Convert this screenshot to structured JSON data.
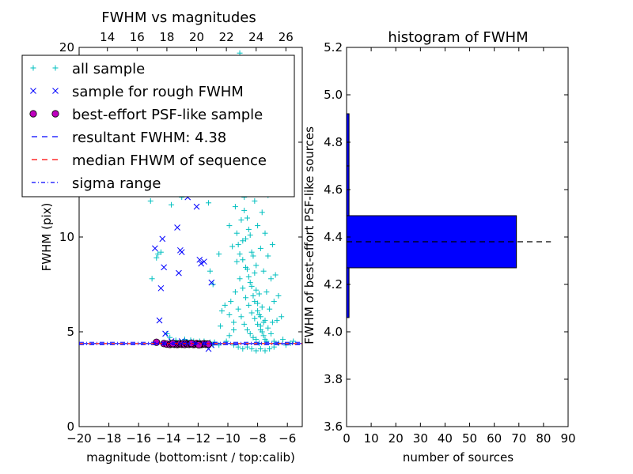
{
  "chart_data": [
    {
      "type": "scatter",
      "title": "FWHM vs magnitudes",
      "xlabel": "magnitude (bottom:isnt / top:calib)",
      "ylabel": "FWHM (pix)",
      "xlim": [
        -20,
        -5
      ],
      "ylim": [
        0,
        20
      ],
      "x_ticks": [
        "−20",
        "−18",
        "−16",
        "−14",
        "−12",
        "−10",
        "−8",
        "−6"
      ],
      "y_ticks": [
        "0",
        "5",
        "10",
        "15",
        "20"
      ],
      "top_ticks": [
        "14",
        "16",
        "18",
        "20",
        "22",
        "24",
        "26"
      ],
      "top_axis": {
        "offset": 32.1
      },
      "legend": {
        "placement": "upper-left",
        "entries": [
          {
            "label": "all sample",
            "marker": "+",
            "color": "#00bfbf"
          },
          {
            "label": "sample for rough FWHM",
            "marker": "x",
            "color": "#0000ff"
          },
          {
            "label": "best-effort PSF-like sample",
            "marker": "o",
            "color": "#bf00bf"
          },
          {
            "label": "resultant FWHM: 4.38",
            "marker": "dashed-line",
            "color": "#0000ff"
          },
          {
            "label": "median FHWM of sequence",
            "marker": "dashed-line",
            "color": "#ff0000"
          },
          {
            "label": "sigma range",
            "marker": "dashdot-line",
            "color": "#0000ff"
          }
        ]
      },
      "lines": {
        "resultant": 4.38,
        "median": 4.38,
        "sigma_range": [
          4.32,
          4.45
        ]
      },
      "series": [
        {
          "name": "all sample",
          "marker": "+",
          "color": "#00bfbf",
          "points": [
            [
              -14.8,
              8.9
            ],
            [
              -14.7,
              9.1
            ],
            [
              -15.2,
              11.9
            ],
            [
              -15.1,
              7.8
            ],
            [
              -14.5,
              9.2
            ],
            [
              -14.2,
              12.5
            ],
            [
              -13.8,
              11.7
            ],
            [
              -13.1,
              12.1
            ],
            [
              -14.1,
              4.9
            ],
            [
              -13.9,
              4.7
            ],
            [
              -13.5,
              4.55
            ],
            [
              -12.9,
              4.6
            ],
            [
              -12.5,
              4.55
            ],
            [
              -12.3,
              4.5
            ],
            [
              -11.9,
              4.5
            ],
            [
              -11.6,
              4.5
            ],
            [
              -11.2,
              4.45
            ],
            [
              -10.9,
              4.45
            ],
            [
              -14.4,
              4.4
            ],
            [
              -13.7,
              4.4
            ],
            [
              -13.2,
              4.4
            ],
            [
              -12.7,
              4.4
            ],
            [
              -12.1,
              4.4
            ],
            [
              -11.5,
              4.4
            ],
            [
              -11.0,
              4.3
            ],
            [
              -10.6,
              4.3
            ],
            [
              -11.6,
              16.0
            ],
            [
              -11.3,
              11.8
            ],
            [
              -11.2,
              8.2
            ],
            [
              -11.0,
              7.5
            ],
            [
              -10.6,
              9.1
            ],
            [
              -10.4,
              6.1
            ],
            [
              -10.2,
              6.4
            ],
            [
              -9.9,
              5.9
            ],
            [
              -9.6,
              5.5
            ],
            [
              -10.3,
              13.0
            ],
            [
              -10.1,
              14.2
            ],
            [
              -10.0,
              12.8
            ],
            [
              -9.9,
              10.6
            ],
            [
              -9.8,
              12.3
            ],
            [
              -9.6,
              14.6
            ],
            [
              -9.5,
              11.6
            ],
            [
              -9.4,
              13.6
            ],
            [
              -9.3,
              9.6
            ],
            [
              -9.2,
              12.9
            ],
            [
              -9.1,
              10.9
            ],
            [
              -9.0,
              8.8
            ],
            [
              -8.9,
              11.4
            ],
            [
              -8.8,
              9.9
            ],
            [
              -8.7,
              8.3
            ],
            [
              -8.6,
              10.4
            ],
            [
              -8.5,
              7.6
            ],
            [
              -8.4,
              9.2
            ],
            [
              -8.3,
              6.9
            ],
            [
              -8.2,
              8.1
            ],
            [
              -8.1,
              7.2
            ],
            [
              -8.0,
              6.5
            ],
            [
              -7.9,
              5.9
            ],
            [
              -7.8,
              5.3
            ],
            [
              -7.7,
              5.0
            ],
            [
              -7.6,
              4.8
            ],
            [
              -7.5,
              4.6
            ],
            [
              -7.4,
              4.5
            ],
            [
              -9.7,
              9.5
            ],
            [
              -9.4,
              8.7
            ],
            [
              -9.2,
              7.8
            ],
            [
              -9.0,
              7.3
            ],
            [
              -8.8,
              6.8
            ],
            [
              -8.6,
              6.4
            ],
            [
              -8.4,
              6.0
            ],
            [
              -8.2,
              5.7
            ],
            [
              -8.0,
              5.4
            ],
            [
              -7.8,
              5.1
            ],
            [
              -9.8,
              6.6
            ],
            [
              -9.5,
              7.1
            ],
            [
              -9.3,
              6.2
            ],
            [
              -9.1,
              5.8
            ],
            [
              -8.9,
              5.4
            ],
            [
              -8.7,
              5.1
            ],
            [
              -8.5,
              4.9
            ],
            [
              -8.3,
              4.7
            ],
            [
              -8.1,
              4.6
            ],
            [
              -7.9,
              4.4
            ],
            [
              -9.6,
              4.3
            ],
            [
              -9.3,
              4.2
            ],
            [
              -9.0,
              4.1
            ],
            [
              -8.7,
              4.2
            ],
            [
              -8.4,
              4.1
            ],
            [
              -8.1,
              4.0
            ],
            [
              -7.8,
              4.1
            ],
            [
              -7.5,
              4.0
            ],
            [
              -7.2,
              4.1
            ],
            [
              -6.9,
              4.2
            ],
            [
              -9.4,
              10.2
            ],
            [
              -9.2,
              9.1
            ],
            [
              -9.0,
              9.8
            ],
            [
              -8.8,
              8.4
            ],
            [
              -8.6,
              7.9
            ],
            [
              -8.4,
              7.4
            ],
            [
              -8.2,
              6.6
            ],
            [
              -8.0,
              6.1
            ],
            [
              -7.8,
              5.8
            ],
            [
              -7.6,
              5.5
            ],
            [
              -8.9,
              12.1
            ],
            [
              -8.7,
              11.0
            ],
            [
              -8.5,
              10.1
            ],
            [
              -8.3,
              9.0
            ],
            [
              -8.1,
              8.5
            ],
            [
              -7.9,
              7.0
            ],
            [
              -7.7,
              6.3
            ],
            [
              -7.5,
              5.6
            ],
            [
              -7.3,
              5.2
            ],
            [
              -7.1,
              4.9
            ],
            [
              -9.1,
              13.4
            ],
            [
              -8.8,
              14.8
            ],
            [
              -8.5,
              13.2
            ],
            [
              -8.2,
              11.9
            ],
            [
              -8.0,
              10.6
            ],
            [
              -7.8,
              9.4
            ],
            [
              -7.6,
              8.2
            ],
            [
              -7.4,
              7.1
            ],
            [
              -7.2,
              6.2
            ],
            [
              -7.0,
              5.5
            ],
            [
              -8.6,
              16.5
            ],
            [
              -8.4,
              15.4
            ],
            [
              -8.1,
              14.3
            ],
            [
              -7.9,
              12.8
            ],
            [
              -7.7,
              11.3
            ],
            [
              -7.5,
              10.2
            ],
            [
              -7.3,
              9.0
            ],
            [
              -7.1,
              7.8
            ],
            [
              -6.9,
              6.6
            ],
            [
              -6.7,
              5.6
            ],
            [
              -8.8,
              18.1
            ],
            [
              -8.5,
              17.2
            ],
            [
              -8.2,
              19.1
            ],
            [
              -7.9,
              16.0
            ],
            [
              -7.6,
              14.7
            ],
            [
              -7.3,
              12.2
            ],
            [
              -7.0,
              9.6
            ],
            [
              -6.8,
              8.0
            ],
            [
              -6.6,
              6.9
            ],
            [
              -6.4,
              5.8
            ],
            [
              -9.9,
              17.3
            ],
            [
              -9.5,
              18.6
            ],
            [
              -9.2,
              19.7
            ],
            [
              -8.9,
              17.9
            ],
            [
              -9.7,
              15.8
            ],
            [
              -9.0,
              16.4
            ],
            [
              -6.9,
              4.5
            ],
            [
              -6.6,
              4.4
            ],
            [
              -6.3,
              4.6
            ],
            [
              -6.1,
              4.3
            ],
            [
              -5.8,
              4.4
            ],
            [
              -5.6,
              4.5
            ],
            [
              -10.1,
              4.5
            ],
            [
              -9.9,
              4.8
            ],
            [
              -9.6,
              5.1
            ],
            [
              -10.5,
              5.3
            ]
          ]
        },
        {
          "name": "sample for rough FWHM",
          "marker": "x",
          "color": "#0000ff",
          "points": [
            [
              -14.9,
              9.4
            ],
            [
              -14.4,
              9.9
            ],
            [
              -14.3,
              8.4
            ],
            [
              -14.5,
              7.3
            ],
            [
              -13.3,
              8.1
            ],
            [
              -13.2,
              9.3
            ],
            [
              -13.1,
              9.2
            ],
            [
              -13.4,
              10.5
            ],
            [
              -12.7,
              12.1
            ],
            [
              -12.1,
              11.6
            ],
            [
              -11.9,
              8.8
            ],
            [
              -11.8,
              8.6
            ],
            [
              -11.6,
              8.7
            ],
            [
              -11.1,
              7.6
            ],
            [
              -11.6,
              14.1
            ],
            [
              -12.3,
              15.4
            ],
            [
              -14.6,
              5.6
            ],
            [
              -14.2,
              4.9
            ],
            [
              -13.8,
              4.5
            ],
            [
              -13.1,
              4.5
            ],
            [
              -12.6,
              4.45
            ],
            [
              -12.0,
              4.4
            ],
            [
              -11.4,
              4.4
            ],
            [
              -11.3,
              4.1
            ],
            [
              -11.1,
              4.3
            ]
          ]
        },
        {
          "name": "best-effort PSF-like sample",
          "marker": "o",
          "color": "#bf00bf",
          "points": [
            [
              -14.8,
              4.45
            ],
            [
              -14.3,
              4.38
            ],
            [
              -14.1,
              4.35
            ],
            [
              -13.9,
              4.33
            ],
            [
              -13.8,
              4.37
            ],
            [
              -13.6,
              4.34
            ],
            [
              -13.5,
              4.36
            ],
            [
              -13.4,
              4.33
            ],
            [
              -13.3,
              4.35
            ],
            [
              -13.2,
              4.37
            ],
            [
              -13.1,
              4.34
            ],
            [
              -13.0,
              4.36
            ],
            [
              -12.9,
              4.33
            ],
            [
              -12.8,
              4.38
            ],
            [
              -12.7,
              4.35
            ],
            [
              -12.6,
              4.34
            ],
            [
              -12.5,
              4.37
            ],
            [
              -12.4,
              4.36
            ],
            [
              -12.3,
              4.33
            ],
            [
              -12.2,
              4.35
            ],
            [
              -12.1,
              4.38
            ],
            [
              -12.0,
              4.34
            ],
            [
              -11.9,
              4.36
            ],
            [
              -11.8,
              4.33
            ],
            [
              -11.7,
              4.35
            ],
            [
              -11.6,
              4.37
            ],
            [
              -11.5,
              4.34
            ],
            [
              -11.4,
              4.36
            ],
            [
              -11.3,
              4.35
            ],
            [
              -13.7,
              4.38
            ],
            [
              -12.45,
              4.39
            ],
            [
              -11.95,
              4.31
            ]
          ]
        }
      ]
    },
    {
      "type": "bar",
      "orientation": "horizontal",
      "title": "histogram of FWHM",
      "xlabel": "number of sources",
      "ylabel": "FWHM of best-effort PSF-like sources",
      "xlim": [
        0,
        90
      ],
      "ylim": [
        3.6,
        5.2
      ],
      "x_ticks": [
        "0",
        "10",
        "20",
        "30",
        "40",
        "50",
        "60",
        "70",
        "80",
        "90"
      ],
      "y_ticks": [
        "3.6",
        "3.8",
        "4.0",
        "4.2",
        "4.4",
        "4.6",
        "4.8",
        "5.0",
        "5.2"
      ],
      "bars": [
        {
          "from": 4.06,
          "to": 4.27,
          "value": 1
        },
        {
          "from": 4.27,
          "to": 4.49,
          "value": 69
        },
        {
          "from": 4.49,
          "to": 4.7,
          "value": 1
        },
        {
          "from": 4.7,
          "to": 4.92,
          "value": 1
        }
      ],
      "bar_color": "#0000ff",
      "reference_line": {
        "y": 4.38,
        "x_range": [
          0,
          83
        ]
      }
    }
  ]
}
